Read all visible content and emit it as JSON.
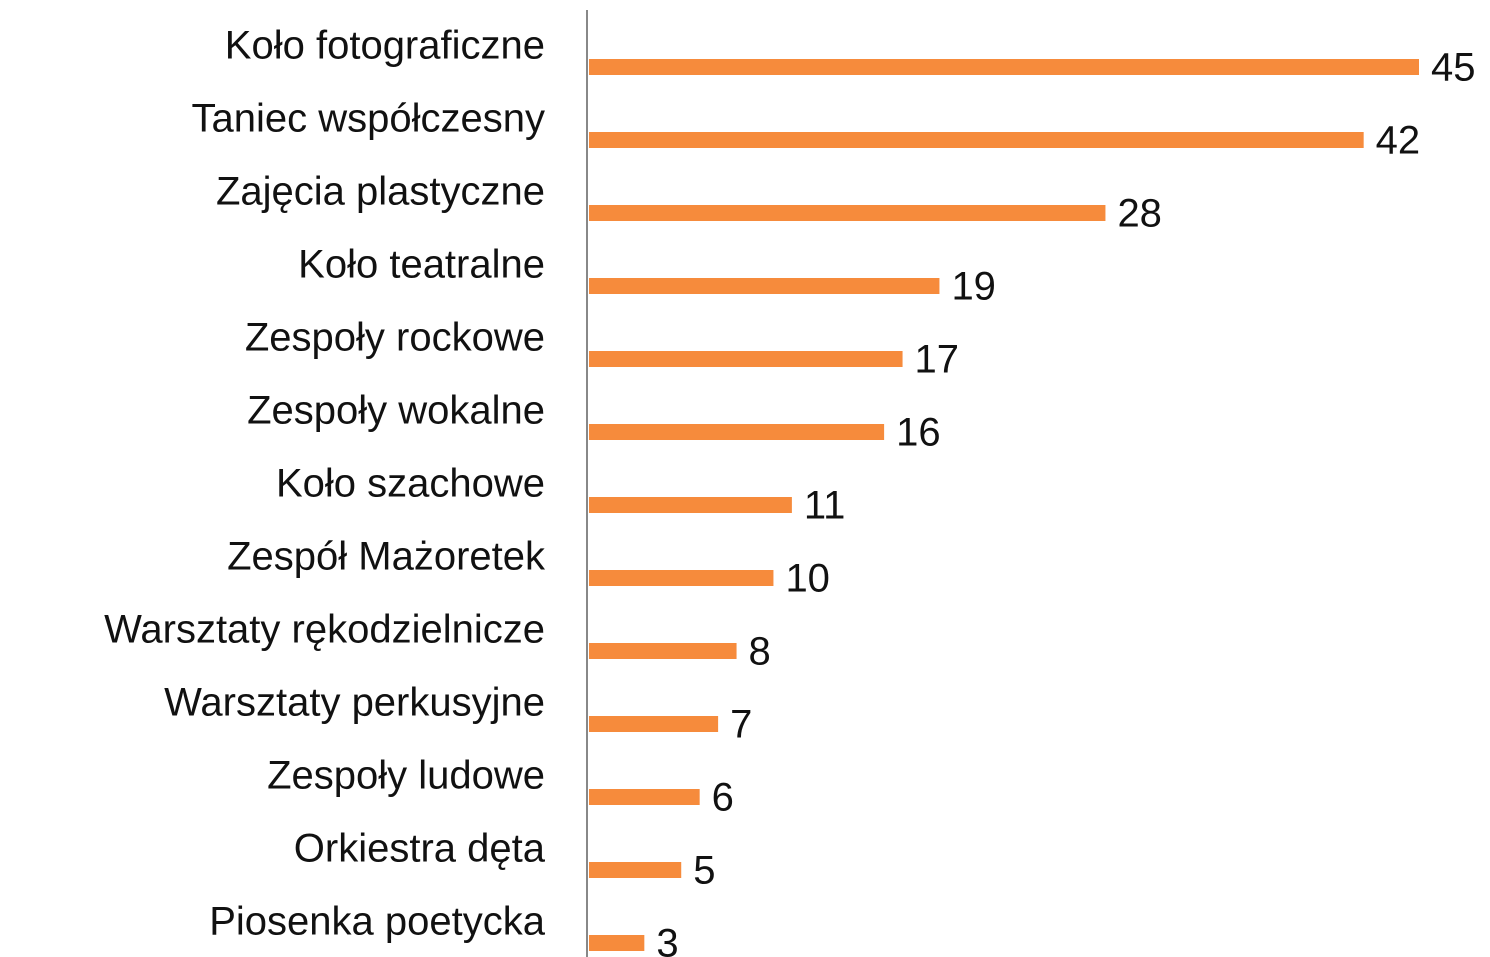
{
  "chart_data": {
    "type": "bar",
    "orientation": "horizontal",
    "categories": [
      "Koło fotograficzne",
      "Taniec współczesny",
      "Zajęcia plastyczne",
      "Koło teatralne",
      "Zespoły rockowe",
      "Zespoły wokalne",
      "Koło szachowe",
      "Zespół Mażoretek",
      "Warsztaty rękodzielnicze",
      "Warsztaty perkusyjne",
      "Zespoły ludowe",
      "Orkiestra dęta",
      "Piosenka poetycka"
    ],
    "values": [
      45,
      42,
      28,
      19,
      17,
      16,
      11,
      10,
      8,
      7,
      6,
      5,
      3
    ],
    "color": "#f68b3c"
  }
}
